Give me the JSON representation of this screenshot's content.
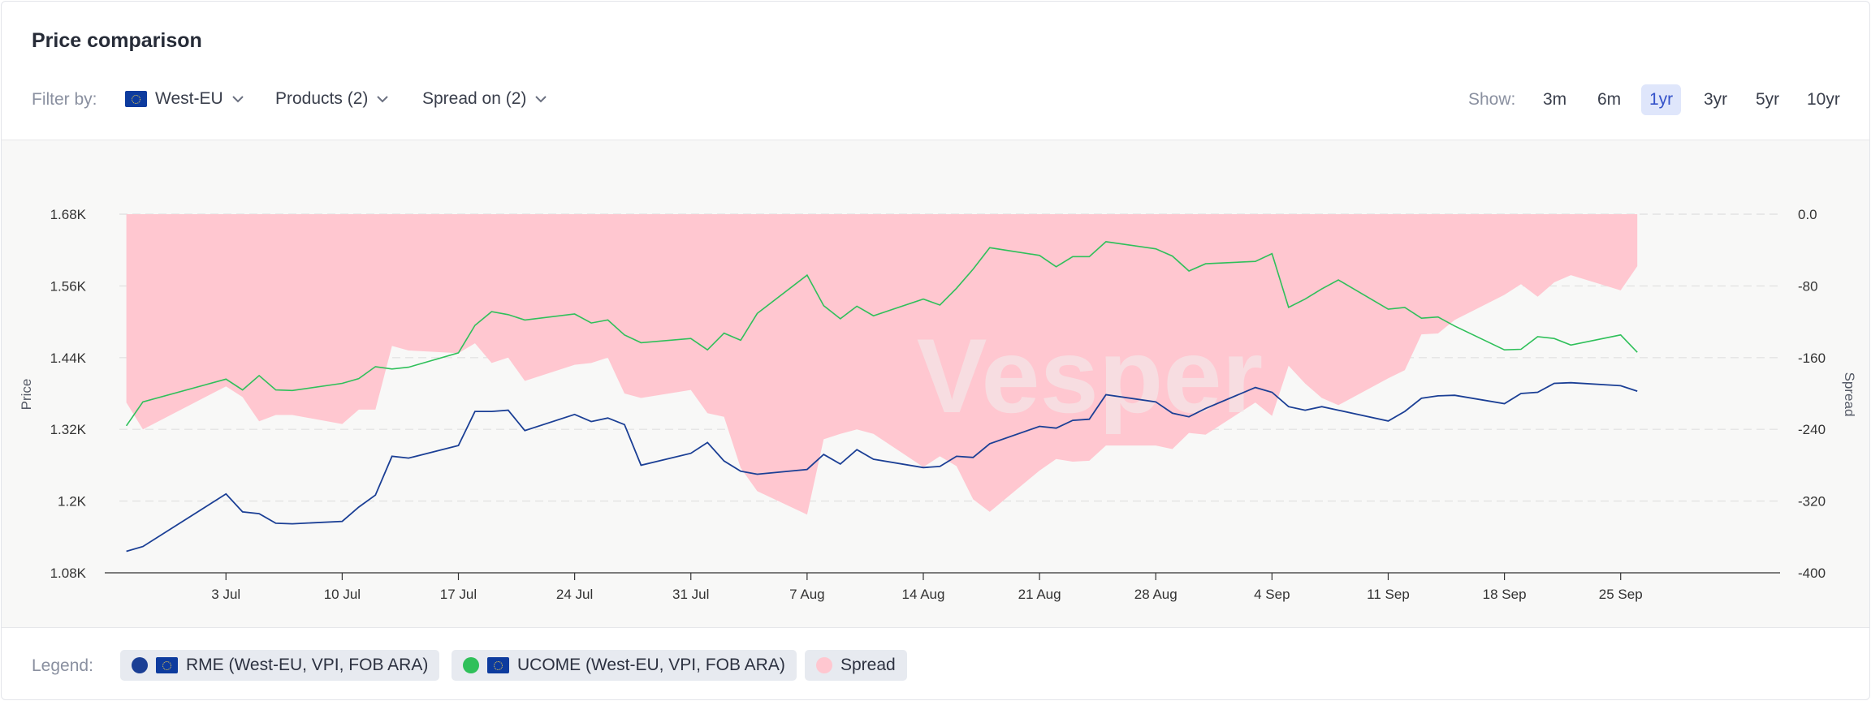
{
  "title": "Price comparison",
  "filters": {
    "label": "Filter by:",
    "region": "West-EU",
    "products": "Products (2)",
    "spread": "Spread on (2)"
  },
  "range": {
    "label": "Show:",
    "options": [
      "3m",
      "6m",
      "1yr",
      "3yr",
      "5yr",
      "10yr"
    ],
    "active": "1yr"
  },
  "legend": {
    "label": "Legend:",
    "items": [
      {
        "name": "RME (West-EU, VPI, FOB ARA)",
        "color": "#1b3f95",
        "flag": true
      },
      {
        "name": "UCOME (West-EU, VPI, FOB ARA)",
        "color": "#2fc05a",
        "flag": true
      },
      {
        "name": "Spread",
        "color": "#ffc7d0",
        "flag": false
      }
    ]
  },
  "chart_data": {
    "type": "line",
    "watermark": "Vesper",
    "ylabel": "Price",
    "y2label": "Spread",
    "yticks": [
      "1.08K",
      "1.2K",
      "1.32K",
      "1.44K",
      "1.56K",
      "1.68K"
    ],
    "ylim": [
      1080,
      1680
    ],
    "y2ticks": [
      "-400",
      "-320",
      "-240",
      "-160",
      "-80",
      "0.0"
    ],
    "y2lim": [
      -400,
      0
    ],
    "xlim": [
      -4.3,
      96.6
    ],
    "xticks": [
      {
        "label": "3 Jul",
        "day": 3
      },
      {
        "label": "10 Jul",
        "day": 10
      },
      {
        "label": "17 Jul",
        "day": 17
      },
      {
        "label": "24 Jul",
        "day": 24
      },
      {
        "label": "31 Jul",
        "day": 31
      },
      {
        "label": "7 Aug",
        "day": 38
      },
      {
        "label": "14 Aug",
        "day": 45
      },
      {
        "label": "21 Aug",
        "day": 52
      },
      {
        "label": "28 Aug",
        "day": 59
      },
      {
        "label": "4 Sep",
        "day": 66
      },
      {
        "label": "11 Sep",
        "day": 73
      },
      {
        "label": "18 Sep",
        "day": 80
      },
      {
        "label": "25 Sep",
        "day": 87
      }
    ],
    "grid": true,
    "series": [
      {
        "name": "RME (West-EU, VPI, FOB ARA)",
        "axis": "left",
        "color": "#1b3f95",
        "x": [
          -3,
          -2,
          3,
          4,
          5,
          6,
          7,
          10,
          11,
          12,
          13,
          14,
          17,
          18,
          19,
          20,
          21,
          24,
          25,
          26,
          27,
          28,
          31,
          32,
          33,
          34,
          35,
          38,
          39,
          40,
          41,
          42,
          45,
          46,
          47,
          48,
          49,
          52,
          53,
          54,
          55,
          56,
          59,
          60,
          61,
          62,
          65,
          66,
          67,
          68,
          69,
          70,
          73,
          74,
          75,
          76,
          77,
          80,
          81,
          82,
          83,
          84,
          87,
          88
        ],
        "values": [
          1116,
          1124,
          1212,
          1182,
          1179,
          1163,
          1162,
          1166,
          1190,
          1210,
          1275,
          1272,
          1293,
          1350,
          1350,
          1352,
          1318,
          1345,
          1333,
          1339,
          1328,
          1260,
          1280,
          1298,
          1267,
          1250,
          1245,
          1253,
          1278,
          1262,
          1286,
          1270,
          1256,
          1258,
          1275,
          1273,
          1296,
          1325,
          1322,
          1335,
          1337,
          1378,
          1366,
          1347,
          1341,
          1355,
          1390,
          1382,
          1358,
          1352,
          1358,
          1352,
          1334,
          1350,
          1372,
          1376,
          1377,
          1363,
          1380,
          1382,
          1397,
          1398,
          1393,
          1384
        ]
      },
      {
        "name": "UCOME (West-EU, VPI, FOB ARA)",
        "axis": "left",
        "color": "#2fc05a",
        "x": [
          -3,
          -2,
          3,
          4,
          5,
          6,
          7,
          10,
          11,
          12,
          13,
          14,
          17,
          18,
          19,
          20,
          21,
          24,
          25,
          26,
          27,
          28,
          31,
          32,
          33,
          34,
          35,
          38,
          39,
          40,
          41,
          42,
          45,
          46,
          47,
          48,
          49,
          52,
          53,
          54,
          55,
          56,
          59,
          60,
          61,
          62,
          65,
          66,
          67,
          68,
          69,
          70,
          73,
          74,
          75,
          76,
          77,
          80,
          81,
          82,
          83,
          84,
          87,
          88
        ],
        "values": [
          1326,
          1366,
          1404,
          1386,
          1410,
          1386,
          1385,
          1397,
          1405,
          1425,
          1421,
          1424,
          1448,
          1494,
          1517,
          1512,
          1503,
          1513,
          1498,
          1503,
          1478,
          1465,
          1472,
          1453,
          1481,
          1469,
          1514,
          1578,
          1527,
          1505,
          1526,
          1510,
          1538,
          1528,
          1556,
          1588,
          1624,
          1611,
          1592,
          1609,
          1609,
          1634,
          1622,
          1610,
          1585,
          1597,
          1601,
          1614,
          1524,
          1538,
          1555,
          1570,
          1521,
          1524,
          1506,
          1508,
          1493,
          1453,
          1454,
          1475,
          1472,
          1461,
          1478,
          1449
        ]
      },
      {
        "name": "Spread",
        "type": "area",
        "axis": "right",
        "color": "#ffc7d0",
        "x": [
          -3,
          -2,
          3,
          4,
          5,
          6,
          7,
          10,
          11,
          12,
          13,
          14,
          17,
          18,
          19,
          20,
          21,
          24,
          25,
          26,
          27,
          28,
          31,
          32,
          33,
          34,
          35,
          38,
          39,
          40,
          41,
          42,
          45,
          46,
          47,
          48,
          49,
          52,
          53,
          54,
          55,
          56,
          59,
          60,
          61,
          62,
          65,
          66,
          67,
          68,
          69,
          70,
          73,
          74,
          75,
          76,
          77,
          80,
          81,
          82,
          83,
          84,
          87,
          88
        ],
        "values": [
          -210,
          -240,
          -192,
          -204,
          -231,
          -224,
          -224,
          -234,
          -218,
          -218,
          -147,
          -152,
          -155,
          -144,
          -166,
          -160,
          -186,
          -168,
          -166,
          -160,
          -200,
          -205,
          -196,
          -222,
          -226,
          -283,
          -309,
          -335,
          -251,
          -245,
          -240,
          -245,
          -282,
          -270,
          -281,
          -318,
          -332,
          -286,
          -273,
          -276,
          -275,
          -258,
          -258,
          -262,
          -244,
          -246,
          -210,
          -225,
          -169,
          -189,
          -205,
          -213,
          -183,
          -174,
          -134,
          -133,
          -118,
          -90,
          -78,
          -92,
          -76,
          -68,
          -85,
          -58
        ]
      }
    ]
  }
}
